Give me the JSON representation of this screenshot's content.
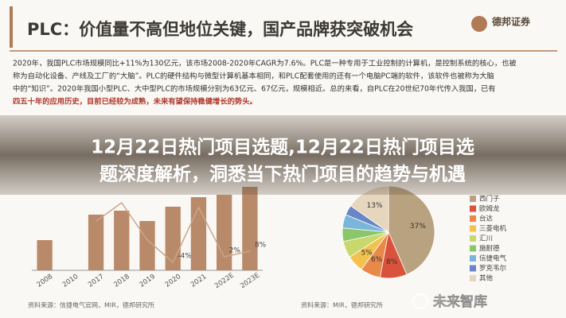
{
  "header": {
    "title": "PLC：价值量不高但地位关键，国产品牌获突破机会",
    "logo": "德邦证券"
  },
  "paragraph": [
    "2020年，我国PLC市场规模同比+11%为130亿元，该市场2008-2020年CAGR为7.6%。PLC是一种专用于工业控制的计算机，是控制系统的核心，也被",
    "称为自动化设备、产线及工厂的“大脑”。PLC的硬件结构与微型计算机基本相同，和PLC配套使用的还有一个电脑PC端的软件，该软件也被称为大脑",
    "中的“知识”。2020年我国小型PLC、大中型PLC的市场规模分别为63亿元、67亿元，规模相近。总的来看，自PLC在20世纪70年代传入我国，已有",
    "四五十年的应用历史，目前已经较为成熟，未来有望保持稳健增长的势头。"
  ],
  "overlay_title": [
    "12月22日热门项目选题,12月22日热门项目选",
    "题深度解析，洞悉当下热门项目的趋势与机遇"
  ],
  "bar_chart": {
    "categories": [
      "2008",
      "2010",
      "2017",
      "2018",
      "2019",
      "2020",
      "2021",
      "2022E",
      "2023E"
    ],
    "values": [
      38,
      0,
      70,
      75,
      62,
      80,
      92,
      95,
      105
    ],
    "color": "#b98a6a",
    "growth": [
      null,
      null,
      40,
      60,
      20,
      -4,
      55,
      2,
      8
    ],
    "growth_labels": [
      null,
      null,
      null,
      null,
      null,
      "-4%",
      null,
      "2%",
      "8%"
    ],
    "line_color": "#c9a68a",
    "source": "资料来源：信捷电气官网，MIR，德邦研究所"
  },
  "pie_chart": {
    "categories": [
      "西门子",
      "欧姆龙",
      "台达",
      "三菱电机",
      "汇川",
      "施耐德",
      "信捷电气",
      "罗克韦尔",
      "其他"
    ],
    "values": [
      37,
      8,
      6,
      5,
      5,
      4,
      4,
      3,
      13
    ],
    "value_labels": [
      "37%",
      "8%",
      "6%",
      "5%",
      null,
      null,
      null,
      null,
      "13%"
    ],
    "colors": [
      "#b9a27f",
      "#d9533c",
      "#e8894a",
      "#f2c14e",
      "#c8d86c",
      "#8cc66b",
      "#7ab6d9",
      "#6a86c7",
      "#e6d6bd"
    ],
    "source": "资料来源：MIR，德邦研究所"
  },
  "watermark": "未来智库"
}
